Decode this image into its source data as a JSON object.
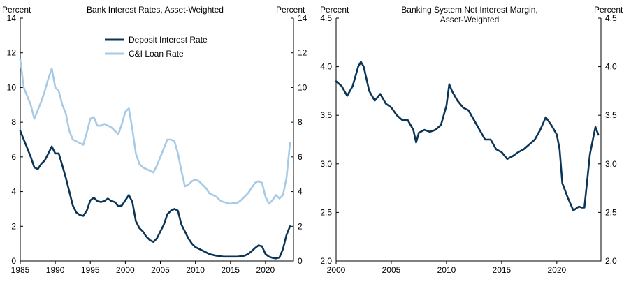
{
  "chart_data": [
    {
      "type": "line",
      "title": "Bank Interest Rates, Asset-Weighted",
      "ylabel_left": "Percent",
      "ylabel_right": "Percent",
      "xlim": [
        1985,
        2024
      ],
      "ylim": [
        0,
        14
      ],
      "yticks": [
        "0",
        "2",
        "4",
        "6",
        "8",
        "10",
        "12",
        "14"
      ],
      "xticks": [
        "1985",
        "1990",
        "1995",
        "2000",
        "2005",
        "2010",
        "2015",
        "2020"
      ],
      "xtick_values": [
        1985,
        1990,
        1995,
        2000,
        2005,
        2010,
        2015,
        2020
      ],
      "ytick_values": [
        0,
        2,
        4,
        6,
        8,
        10,
        12,
        14
      ],
      "legend_position": "top-center",
      "series": [
        {
          "name": "Deposit Interest Rate",
          "color": "#0b3556",
          "x": [
            1985,
            1985.5,
            1986,
            1986.5,
            1987,
            1987.5,
            1988,
            1988.5,
            1989,
            1989.5,
            1990,
            1990.5,
            1991,
            1991.5,
            1992,
            1992.5,
            1993,
            1993.5,
            1994,
            1994.5,
            1995,
            1995.5,
            1996,
            1996.5,
            1997,
            1997.5,
            1998,
            1998.5,
            1999,
            1999.5,
            2000,
            2000.5,
            2001,
            2001.5,
            2002,
            2002.5,
            2003,
            2003.5,
            2004,
            2004.5,
            2005,
            2005.5,
            2006,
            2006.5,
            2007,
            2007.5,
            2008,
            2008.5,
            2009,
            2009.5,
            2010,
            2010.5,
            2011,
            2011.5,
            2012,
            2012.5,
            2013,
            2013.5,
            2014,
            2015,
            2016,
            2017,
            2017.5,
            2018,
            2018.5,
            2019,
            2019.5,
            2020,
            2020.5,
            2021,
            2021.5,
            2022,
            2022.5,
            2023,
            2023.5
          ],
          "y": [
            7.5,
            7.0,
            6.5,
            6.0,
            5.4,
            5.3,
            5.6,
            5.8,
            6.2,
            6.6,
            6.2,
            6.2,
            5.5,
            4.8,
            4.0,
            3.2,
            2.8,
            2.65,
            2.6,
            2.9,
            3.5,
            3.65,
            3.45,
            3.4,
            3.45,
            3.6,
            3.45,
            3.4,
            3.15,
            3.2,
            3.5,
            3.8,
            3.4,
            2.3,
            1.9,
            1.7,
            1.4,
            1.2,
            1.1,
            1.3,
            1.7,
            2.1,
            2.7,
            2.9,
            3.0,
            2.9,
            2.1,
            1.7,
            1.3,
            1.0,
            0.8,
            0.7,
            0.6,
            0.5,
            0.4,
            0.35,
            0.3,
            0.28,
            0.25,
            0.25,
            0.25,
            0.3,
            0.4,
            0.55,
            0.75,
            0.9,
            0.85,
            0.4,
            0.25,
            0.18,
            0.15,
            0.2,
            0.7,
            1.5,
            2.0
          ]
        },
        {
          "name": "C&I Loan Rate",
          "color": "#a7cbe6",
          "x": [
            1985,
            1985.5,
            1986,
            1986.5,
            1987,
            1987.5,
            1988,
            1988.5,
            1989,
            1989.5,
            1990,
            1990.5,
            1991,
            1991.5,
            1992,
            1992.5,
            1993,
            1993.5,
            1994,
            1994.5,
            1995,
            1995.5,
            1996,
            1996.5,
            1997,
            1997.5,
            1998,
            1998.5,
            1999,
            1999.5,
            2000,
            2000.5,
            2001,
            2001.5,
            2002,
            2002.5,
            2003,
            2003.5,
            2004,
            2004.5,
            2005,
            2005.5,
            2006,
            2006.5,
            2007,
            2007.5,
            2008,
            2008.5,
            2009,
            2009.5,
            2010,
            2010.5,
            2011,
            2011.5,
            2012,
            2012.5,
            2013,
            2013.5,
            2014,
            2014.5,
            2015,
            2015.5,
            2016,
            2016.5,
            2017,
            2017.5,
            2018,
            2018.5,
            2019,
            2019.5,
            2020,
            2020.5,
            2021,
            2021.5,
            2022,
            2022.5,
            2023,
            2023.5
          ],
          "y": [
            11.6,
            10.0,
            9.5,
            9.0,
            8.2,
            8.7,
            9.2,
            9.8,
            10.5,
            11.1,
            10.0,
            9.8,
            9.0,
            8.5,
            7.5,
            7.0,
            6.9,
            6.8,
            6.7,
            7.4,
            8.2,
            8.3,
            7.8,
            7.8,
            7.9,
            7.8,
            7.7,
            7.5,
            7.3,
            7.9,
            8.6,
            8.8,
            7.6,
            6.2,
            5.6,
            5.4,
            5.3,
            5.2,
            5.1,
            5.5,
            6.0,
            6.5,
            7.0,
            7.0,
            6.9,
            6.2,
            5.2,
            4.3,
            4.4,
            4.6,
            4.7,
            4.6,
            4.4,
            4.2,
            3.9,
            3.8,
            3.7,
            3.5,
            3.4,
            3.35,
            3.3,
            3.35,
            3.35,
            3.5,
            3.7,
            3.9,
            4.2,
            4.5,
            4.6,
            4.5,
            3.7,
            3.3,
            3.5,
            3.8,
            3.6,
            3.8,
            4.8,
            6.8
          ]
        }
      ]
    },
    {
      "type": "line",
      "title": "Banking System Net Interest Margin, Asset-Weighted",
      "title_lines": [
        "Banking System Net Interest Margin,",
        "Asset-Weighted"
      ],
      "ylabel_left": "Percent",
      "ylabel_right": "Percent",
      "xlim": [
        2000,
        2024
      ],
      "ylim": [
        2.0,
        4.5
      ],
      "yticks": [
        "2.0",
        "2.5",
        "3.0",
        "3.5",
        "4.0",
        "4.5"
      ],
      "ytick_values": [
        2.0,
        2.5,
        3.0,
        3.5,
        4.0,
        4.5
      ],
      "xticks": [
        "2000",
        "2005",
        "2010",
        "2015",
        "2020"
      ],
      "xtick_values": [
        2000,
        2005,
        2010,
        2015,
        2020
      ],
      "series": [
        {
          "name": "",
          "color": "#0b3556",
          "x": [
            2000,
            2000.5,
            2001,
            2001.5,
            2002,
            2002.25,
            2002.5,
            2003,
            2003.5,
            2004,
            2004.5,
            2005,
            2005.5,
            2006,
            2006.5,
            2007,
            2007.25,
            2007.5,
            2008,
            2008.5,
            2009,
            2009.5,
            2010,
            2010.25,
            2010.5,
            2011,
            2011.5,
            2012,
            2012.5,
            2013,
            2013.5,
            2014,
            2014.5,
            2015,
            2015.5,
            2016,
            2016.5,
            2017,
            2017.5,
            2018,
            2018.5,
            2019,
            2019.5,
            2020,
            2020.25,
            2020.5,
            2021,
            2021.5,
            2022,
            2022.25,
            2022.5,
            2023,
            2023.5,
            2023.75
          ],
          "y": [
            3.85,
            3.8,
            3.7,
            3.8,
            4.0,
            4.05,
            4.0,
            3.75,
            3.65,
            3.72,
            3.62,
            3.58,
            3.5,
            3.45,
            3.45,
            3.35,
            3.22,
            3.32,
            3.35,
            3.33,
            3.35,
            3.4,
            3.6,
            3.82,
            3.75,
            3.65,
            3.58,
            3.55,
            3.45,
            3.35,
            3.25,
            3.25,
            3.15,
            3.12,
            3.05,
            3.08,
            3.12,
            3.15,
            3.2,
            3.25,
            3.35,
            3.48,
            3.4,
            3.3,
            3.15,
            2.8,
            2.65,
            2.52,
            2.56,
            2.55,
            2.55,
            3.1,
            3.38,
            3.3
          ]
        }
      ]
    }
  ]
}
